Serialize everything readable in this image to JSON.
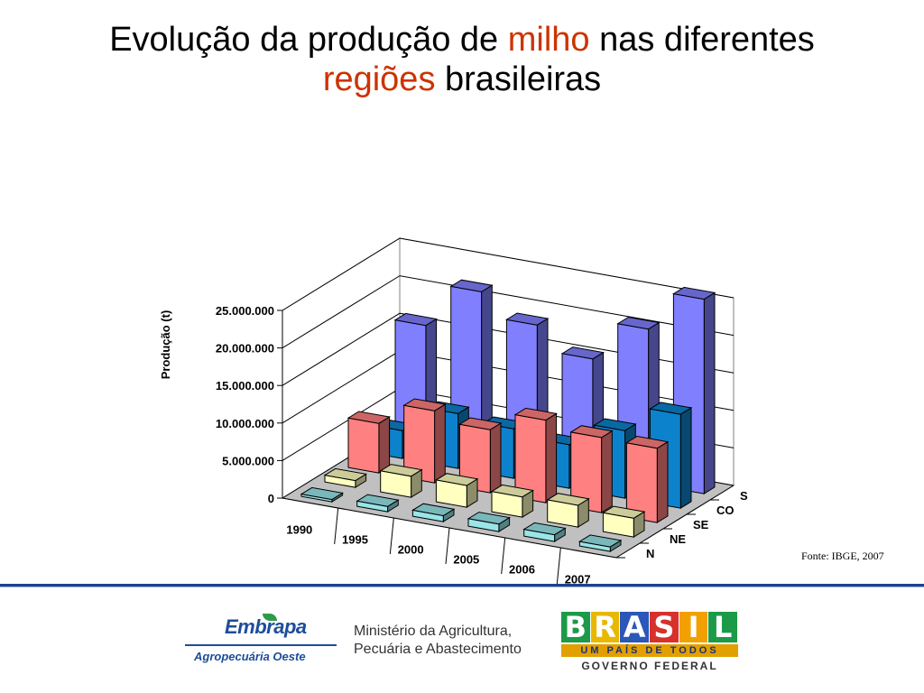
{
  "header": {
    "title_part1": "Evolução da produção de ",
    "title_highlight1": "milho",
    "title_part2": " nas diferentes",
    "title_highlight2": "regiões",
    "title_part3": " brasileiras",
    "highlight_color": "#cc3300"
  },
  "chart_data": {
    "type": "bar",
    "subtype": "3d-clustered-bar",
    "title": "",
    "xlabel": "",
    "ylabel": "Produção (t)",
    "ylim": [
      0,
      25000000
    ],
    "y_ticks": [
      0,
      5000000,
      10000000,
      15000000,
      20000000,
      25000000
    ],
    "y_tick_labels": [
      "0",
      "5.000.000",
      "10.000.000",
      "15.000.000",
      "20.000.000",
      "25.000.000"
    ],
    "categories": [
      "1990",
      "1995",
      "2000",
      "2005",
      "2006",
      "2007"
    ],
    "depth_labels": [
      "N",
      "NE",
      "SE",
      "CO",
      "S"
    ],
    "grid": true,
    "series": [
      {
        "name": "N",
        "color": "#99e5e8",
        "values": [
          300000,
          700000,
          800000,
          1000000,
          900000,
          600000
        ]
      },
      {
        "name": "NE",
        "color": "#ffffc0",
        "values": [
          900000,
          2800000,
          2900000,
          2700000,
          2900000,
          2500000
        ]
      },
      {
        "name": "SE",
        "color": "#ff8080",
        "values": [
          6600000,
          9600000,
          8400000,
          11000000,
          10000000,
          9900000
        ]
      },
      {
        "name": "CO",
        "color": "#0d82cc",
        "values": [
          3700000,
          7300000,
          6600000,
          5800000,
          9000000,
          12500000
        ]
      },
      {
        "name": "S",
        "color": "#8080ff",
        "values": [
          15800000,
          21600000,
          18500000,
          15300000,
          20600000,
          25900000
        ]
      }
    ]
  },
  "source": {
    "text": "Fonte: IBGE, 2007"
  },
  "footer": {
    "embrapa_name": "Embrapa",
    "embrapa_unit": "Agropecuária Oeste",
    "ministry_line1": "Ministério da Agricultura,",
    "ministry_line2": "Pecuária e Abastecimento",
    "brasil_letters": [
      "B",
      "R",
      "A",
      "S",
      "I",
      "L"
    ],
    "brasil_letter_colors": [
      "#1c9a48",
      "#e8b800",
      "#2b57b8",
      "#d8312b",
      "#f2a000",
      "#1c9a48"
    ],
    "brasil_tagline": "UM PAÍS DE TODOS",
    "brasil_gov": "GOVERNO FEDERAL",
    "rule_color": "#1f3f8f"
  }
}
